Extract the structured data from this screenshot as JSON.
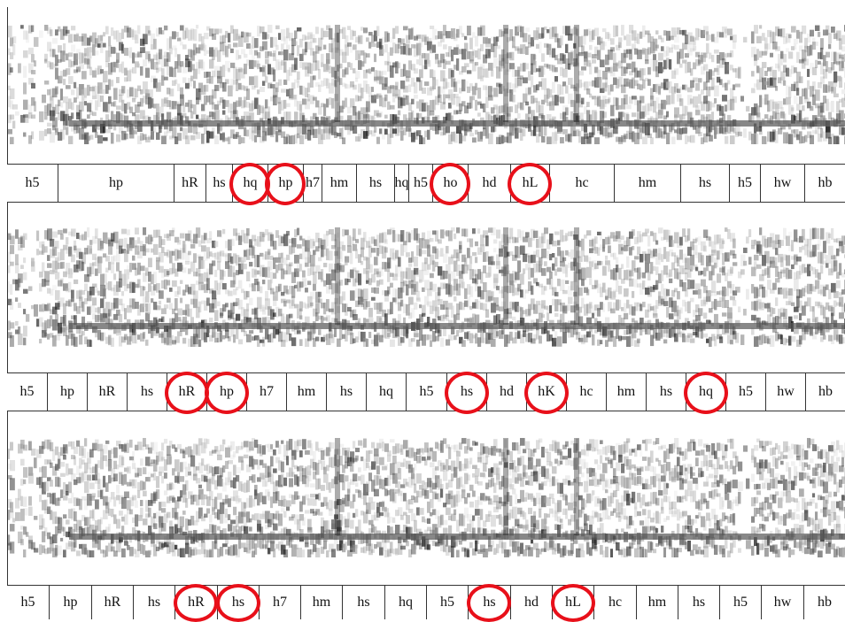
{
  "tiers": [
    {
      "labels": [
        "h5",
        "hp",
        "hR",
        "hs",
        "hq",
        "hp",
        "h7",
        "hm",
        "hs",
        "hq",
        "h5",
        "ho",
        "hd",
        "hL",
        "hc",
        "hm",
        "hs",
        "h5",
        "hw",
        "hb"
      ],
      "circled": [
        4,
        5,
        11,
        13
      ]
    },
    {
      "labels": [
        "h5",
        "hp",
        "hR",
        "hs",
        "hR",
        "hp",
        "h7",
        "hm",
        "hs",
        "hq",
        "h5",
        "hs",
        "hd",
        "hK",
        "hc",
        "hm",
        "hs",
        "hq",
        "h5",
        "hw",
        "hb"
      ],
      "circled": [
        4,
        5,
        11,
        13,
        17
      ]
    },
    {
      "labels": [
        "h5",
        "hp",
        "hR",
        "hs",
        "hR",
        "hs",
        "h7",
        "hm",
        "hs",
        "hq",
        "h5",
        "hs",
        "hd",
        "hL",
        "hc",
        "hm",
        "hs",
        "h5",
        "hw",
        "hb"
      ],
      "circled": [
        4,
        5,
        11,
        13
      ]
    }
  ],
  "colors": {
    "circle": "#e8101a",
    "ink": "#111111",
    "border": "#333333"
  }
}
